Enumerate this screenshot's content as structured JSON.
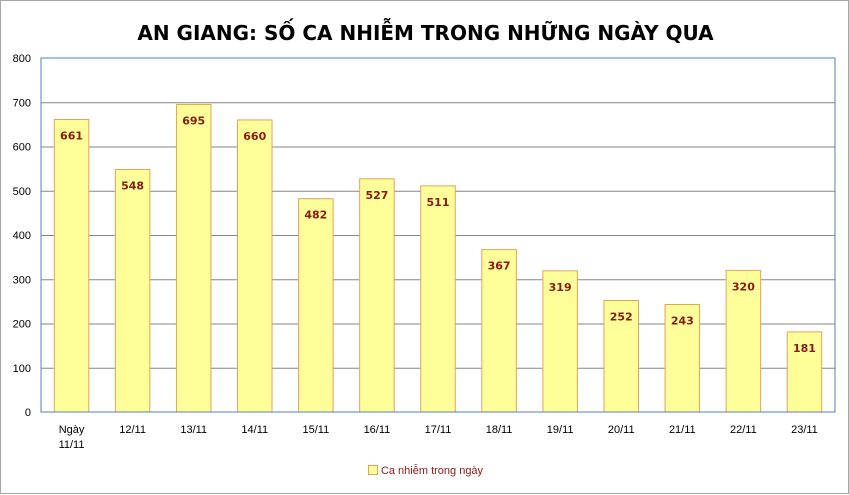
{
  "chart_data": {
    "type": "bar",
    "title": "AN GIANG: SỐ CA NHIỄM TRONG NHỮNG NGÀY QUA",
    "categories": [
      "Ngày 11/11",
      "12/11",
      "13/11",
      "14/11",
      "15/11",
      "16/11",
      "17/11",
      "18/11",
      "19/11",
      "20/11",
      "21/11",
      "22/11",
      "23/11"
    ],
    "series": [
      {
        "name": "Ca nhiễm trong ngày",
        "values": [
          661,
          548,
          695,
          660,
          482,
          527,
          511,
          367,
          319,
          252,
          243,
          320,
          181
        ]
      }
    ],
    "xlabel": "",
    "ylabel": "",
    "ylim": [
      0,
      800
    ],
    "yticks": [
      0,
      100,
      200,
      300,
      400,
      500,
      600,
      700,
      800
    ],
    "grid": true,
    "legend_position": "bottom",
    "colors": {
      "bar_fill": "#ffff99",
      "bar_border": "#e8a15a",
      "data_label": "#8b1a10",
      "gridline": "#868686",
      "plot_border": "#4f81bd"
    }
  }
}
